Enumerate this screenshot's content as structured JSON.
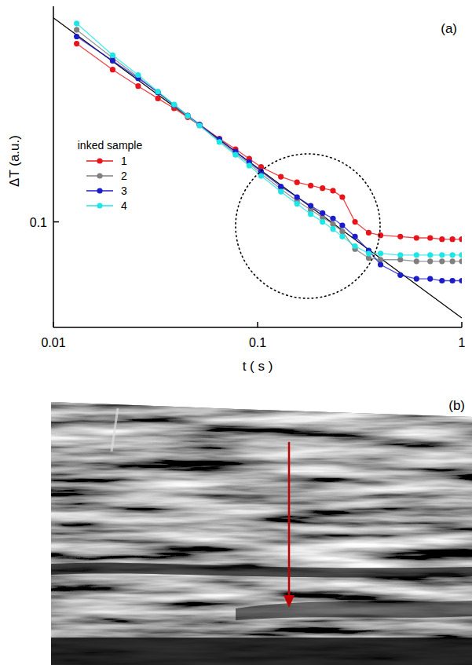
{
  "chart_data": {
    "type": "line",
    "log": true,
    "x_label": "t ( s )",
    "y_label": "ΔT (a.u.)",
    "annotations": [
      "(a)"
    ],
    "legend": "left",
    "legend_title": "inked sample",
    "xlim": [
      0.01,
      1
    ],
    "ylim": [
      0.04,
      0.65
    ],
    "xticks": [
      0.01,
      0.1,
      1
    ],
    "yticks": [
      0.1
    ],
    "x": [
      0.013,
      0.0195,
      0.026,
      0.0325,
      0.039,
      0.0455,
      0.052,
      0.065,
      0.078,
      0.091,
      0.104,
      0.13,
      0.156,
      0.182,
      0.208,
      0.234,
      0.26,
      0.3,
      0.35,
      0.4,
      0.5,
      0.6,
      0.7,
      0.8,
      0.9,
      1.0
    ],
    "series": [
      {
        "name": "1",
        "color": "#e8141c",
        "marker": "circle",
        "line_style": "solid",
        "values": [
          0.47,
          0.375,
          0.325,
          0.292,
          0.268,
          0.248,
          0.232,
          0.206,
          0.188,
          0.173,
          0.161,
          0.148,
          0.141,
          0.137,
          0.134,
          0.131,
          0.124,
          0.1,
          0.091,
          0.089,
          0.088,
          0.087,
          0.087,
          0.086,
          0.086,
          0.086
        ]
      },
      {
        "name": "2",
        "color": "#808080",
        "marker": "circle",
        "line_style": "solid",
        "values": [
          0.53,
          0.415,
          0.352,
          0.307,
          0.275,
          0.25,
          0.231,
          0.202,
          0.181,
          0.166,
          0.152,
          0.133,
          0.12,
          0.111,
          0.104,
          0.098,
          0.092,
          0.079,
          0.073,
          0.072,
          0.072,
          0.071,
          0.071,
          0.071,
          0.071,
          0.071
        ]
      },
      {
        "name": "3",
        "color": "#1c1cc8",
        "marker": "circle",
        "line_style": "solid",
        "values": [
          0.5,
          0.405,
          0.348,
          0.308,
          0.276,
          0.252,
          0.233,
          0.205,
          0.184,
          0.168,
          0.155,
          0.136,
          0.124,
          0.115,
          0.108,
          0.103,
          0.097,
          0.088,
          0.078,
          0.069,
          0.063,
          0.061,
          0.061,
          0.06,
          0.06,
          0.06
        ]
      },
      {
        "name": "4",
        "color": "#1ee6e6",
        "marker": "circle",
        "line_style": "solid",
        "values": [
          0.56,
          0.425,
          0.358,
          0.31,
          0.277,
          0.251,
          0.231,
          0.2,
          0.179,
          0.163,
          0.149,
          0.13,
          0.117,
          0.107,
          0.1,
          0.094,
          0.088,
          0.081,
          0.076,
          0.076,
          0.075,
          0.075,
          0.075,
          0.075,
          0.075,
          0.075
        ]
      },
      {
        "color": "#000000",
        "marker": "none",
        "line_style": "solid",
        "x": [
          0.01,
          1
        ],
        "values": [
          0.588,
          0.0434
        ]
      }
    ]
  },
  "image_panel": {
    "label": "(b)"
  }
}
